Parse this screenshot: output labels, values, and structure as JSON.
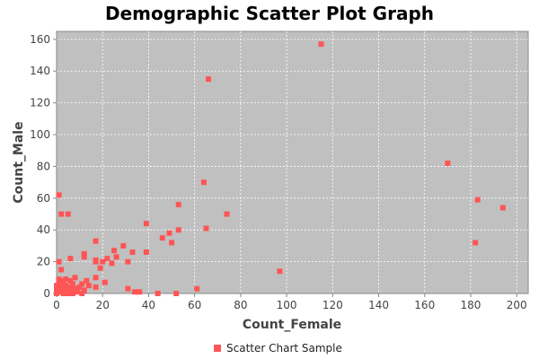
{
  "chart_data": {
    "type": "scatter",
    "title": "Demographic Scatter Plot Graph",
    "xlabel": "Count_Female",
    "ylabel": "Count_Male",
    "xlim": [
      0,
      205
    ],
    "ylim": [
      0,
      165
    ],
    "xticks": [
      0,
      20,
      40,
      60,
      80,
      100,
      120,
      140,
      160,
      180,
      200
    ],
    "yticks": [
      0,
      20,
      40,
      60,
      80,
      100,
      120,
      140,
      160
    ],
    "grid": true,
    "legend_position": "bottom-center",
    "colors": {
      "plot_background": "#c0c0c0",
      "gridline": "#ffffff",
      "marker": "#ff5555"
    },
    "series": [
      {
        "name": "Scatter Chart Sample",
        "points": [
          [
            115,
            157
          ],
          [
            66,
            135
          ],
          [
            170,
            82
          ],
          [
            64,
            70
          ],
          [
            183,
            59
          ],
          [
            53,
            56
          ],
          [
            194,
            54
          ],
          [
            1,
            62
          ],
          [
            2,
            50
          ],
          [
            5,
            50
          ],
          [
            74,
            50
          ],
          [
            39,
            44
          ],
          [
            65,
            41
          ],
          [
            53,
            40
          ],
          [
            49,
            38
          ],
          [
            46,
            35
          ],
          [
            50,
            32
          ],
          [
            182,
            32
          ],
          [
            17,
            33
          ],
          [
            29,
            30
          ],
          [
            25,
            27
          ],
          [
            33,
            26
          ],
          [
            39,
            26
          ],
          [
            12,
            25
          ],
          [
            12,
            23
          ],
          [
            26,
            23
          ],
          [
            22,
            22
          ],
          [
            6,
            22
          ],
          [
            17,
            21
          ],
          [
            17,
            20
          ],
          [
            20,
            20
          ],
          [
            31,
            20
          ],
          [
            24,
            19
          ],
          [
            1,
            20
          ],
          [
            19,
            16
          ],
          [
            2,
            15
          ],
          [
            97,
            14
          ],
          [
            8,
            10
          ],
          [
            17,
            10
          ],
          [
            1,
            9
          ],
          [
            4,
            9
          ],
          [
            2,
            8
          ],
          [
            6,
            8
          ],
          [
            13,
            8
          ],
          [
            21,
            7
          ],
          [
            1,
            6
          ],
          [
            3,
            6
          ],
          [
            7,
            6
          ],
          [
            11,
            6
          ],
          [
            0,
            5
          ],
          [
            4,
            5
          ],
          [
            14,
            5
          ],
          [
            1,
            4
          ],
          [
            6,
            4
          ],
          [
            10,
            4
          ],
          [
            17,
            4
          ],
          [
            2,
            3
          ],
          [
            5,
            3
          ],
          [
            8,
            3
          ],
          [
            31,
            3
          ],
          [
            61,
            3
          ],
          [
            0,
            2
          ],
          [
            3,
            2
          ],
          [
            6,
            2
          ],
          [
            12,
            2
          ],
          [
            1,
            1
          ],
          [
            4,
            1
          ],
          [
            9,
            1
          ],
          [
            34,
            1
          ],
          [
            36,
            1
          ],
          [
            0,
            0
          ],
          [
            3,
            0
          ],
          [
            5,
            0
          ],
          [
            7,
            0
          ],
          [
            11,
            0
          ],
          [
            44,
            0
          ],
          [
            52,
            0
          ]
        ]
      }
    ]
  }
}
